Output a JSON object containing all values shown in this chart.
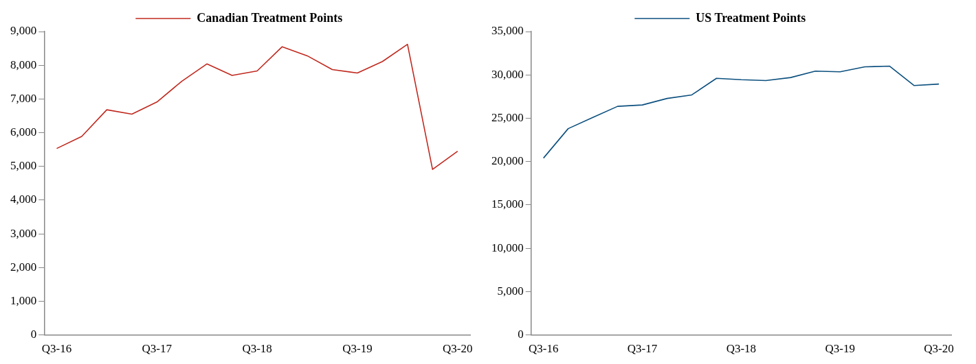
{
  "chart_data": [
    {
      "type": "line",
      "categories": [
        "Q3-16",
        null,
        null,
        null,
        "Q3-17",
        null,
        null,
        null,
        "Q3-18",
        null,
        null,
        null,
        "Q3-19",
        null,
        null,
        null,
        "Q3-20"
      ],
      "series": [
        {
          "name": "Canadian Treatment Points",
          "color": "#c0281e",
          "values": [
            5530,
            5890,
            6680,
            6550,
            6910,
            7530,
            8040,
            7700,
            7830,
            8550,
            8280,
            7870,
            7770,
            8110,
            8620,
            4910,
            5450
          ]
        }
      ],
      "ylim": [
        0,
        9000
      ],
      "yticks": [
        {
          "value": 0,
          "label": "0"
        },
        {
          "value": 1000,
          "label": "1,000"
        },
        {
          "value": 2000,
          "label": "2,000"
        },
        {
          "value": 3000,
          "label": "3,000"
        },
        {
          "value": 4000,
          "label": "4,000"
        },
        {
          "value": 5000,
          "label": "5,000"
        },
        {
          "value": 6000,
          "label": "6,000"
        },
        {
          "value": 7000,
          "label": "7,000"
        },
        {
          "value": 8000,
          "label": "8,000"
        },
        {
          "value": 9000,
          "label": "9,000"
        }
      ],
      "grid": false,
      "legend": "top",
      "marker": "none",
      "line_style": "solid"
    },
    {
      "type": "line",
      "categories": [
        "Q3-16",
        null,
        null,
        null,
        "Q3-17",
        null,
        null,
        null,
        "Q3-18",
        null,
        null,
        null,
        "Q3-19",
        null,
        null,
        null,
        "Q3-20"
      ],
      "series": [
        {
          "name": "US Treatment Points",
          "color": "#0b4f7e",
          "values": [
            20400,
            23800,
            25100,
            26370,
            26530,
            27280,
            27690,
            29600,
            29440,
            29350,
            29690,
            30430,
            30350,
            30930,
            31010,
            28770,
            28940
          ]
        }
      ],
      "ylim": [
        0,
        35000
      ],
      "yticks": [
        {
          "value": 0,
          "label": "0"
        },
        {
          "value": 5000,
          "label": "5,000"
        },
        {
          "value": 10000,
          "label": "10,000"
        },
        {
          "value": 15000,
          "label": "15,000"
        },
        {
          "value": 20000,
          "label": "20,000"
        },
        {
          "value": 25000,
          "label": "25,000"
        },
        {
          "value": 30000,
          "label": "30,000"
        },
        {
          "value": 35000,
          "label": "35,000"
        }
      ],
      "grid": false,
      "legend": "top",
      "marker": "none",
      "line_style": "solid"
    }
  ]
}
